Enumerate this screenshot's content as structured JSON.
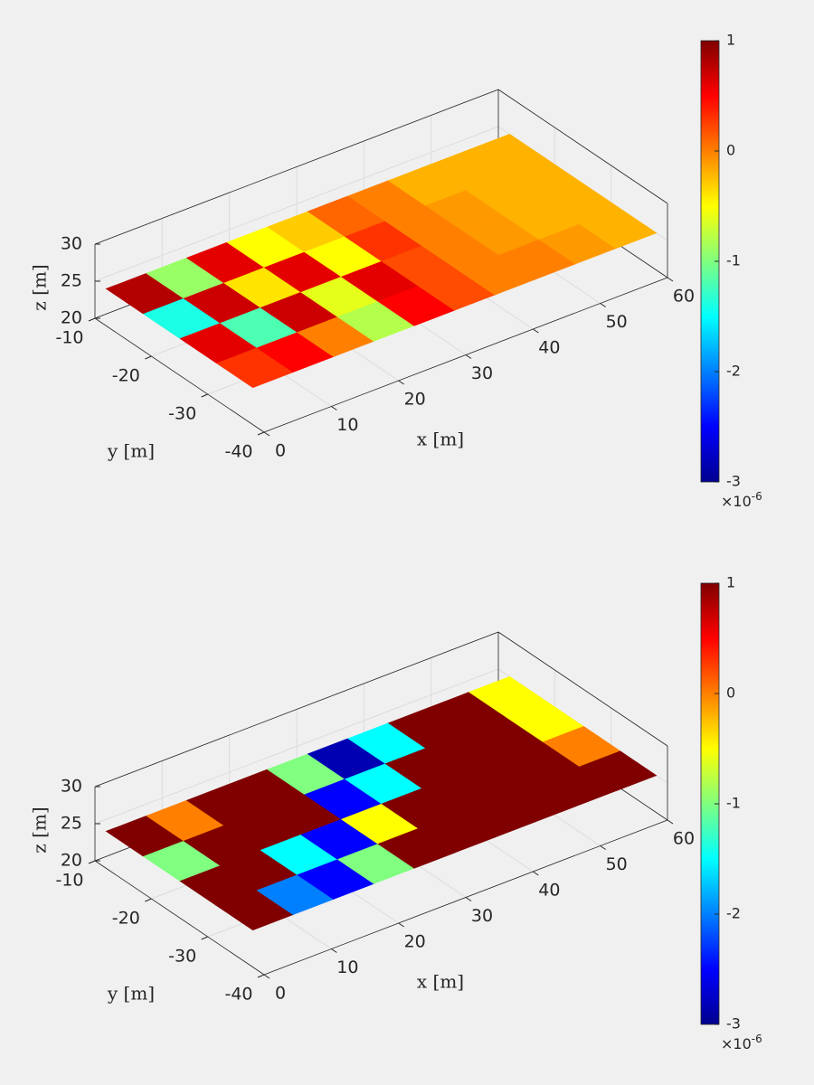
{
  "chart_data": [
    {
      "type": "surface",
      "xlabel": "x [m]",
      "ylabel": "y [m]",
      "zlabel": "z [m]",
      "x": [
        0,
        6,
        12,
        18,
        24,
        30,
        36,
        42,
        48,
        54,
        60
      ],
      "y": [
        -38,
        -31.5,
        -25,
        -18.5,
        -12
      ],
      "z": 25,
      "values": [
        [
          0.3,
          0.5,
          0.0,
          -0.8,
          0.5,
          0.2,
          0.0,
          0.0,
          -0.1,
          -0.2
        ],
        [
          0.6,
          -1.2,
          0.7,
          -0.6,
          0.6,
          0.2,
          0.0,
          -0.1,
          -0.2,
          -0.2
        ],
        [
          -1.4,
          0.7,
          -0.4,
          0.6,
          -0.5,
          0.3,
          0.0,
          -0.1,
          -0.2,
          -0.2
        ],
        [
          0.8,
          -0.9,
          0.6,
          -0.5,
          -0.3,
          0.1,
          0.0,
          -0.2,
          -0.2,
          -0.2
        ]
      ],
      "xlim": [
        0,
        60
      ],
      "xticks": [
        0,
        10,
        20,
        30,
        40,
        50,
        60
      ],
      "ylim": [
        -40,
        -10
      ],
      "yticks": [
        -10,
        -20,
        -30,
        -40
      ],
      "zlim": [
        20,
        30
      ],
      "zticks": [
        20,
        25,
        30
      ],
      "clim": [
        -3,
        1
      ],
      "cticks": [
        -3,
        -2,
        -1,
        0,
        1
      ],
      "colorbar_multiplier": "×10",
      "colorbar_exponent": "-6",
      "colormap": "jet",
      "grid": true
    },
    {
      "type": "surface",
      "xlabel": "x [m]",
      "ylabel": "y [m]",
      "zlabel": "z [m]",
      "x": [
        0,
        6,
        12,
        18,
        24,
        30,
        36,
        42,
        48,
        54,
        60
      ],
      "y": [
        -38,
        -31.5,
        -25,
        -18.5,
        -12
      ],
      "z": 25,
      "values": [
        [
          1.5,
          -2,
          -2.5,
          -1,
          1.5,
          1.5,
          1.5,
          1.5,
          1.5,
          1.5
        ],
        [
          1.5,
          1.5,
          -1.5,
          -2.5,
          -0.5,
          1.5,
          1.5,
          1.5,
          1.5,
          0
        ],
        [
          -1,
          1.5,
          1.5,
          1.5,
          -2.5,
          -1.5,
          1.5,
          1.5,
          1.5,
          -0.5
        ],
        [
          1.5,
          0,
          1.5,
          1.5,
          -1,
          -2.8,
          -1.5,
          1.5,
          1.5,
          -0.5
        ]
      ],
      "xlim": [
        0,
        60
      ],
      "xticks": [
        0,
        10,
        20,
        30,
        40,
        50,
        60
      ],
      "ylim": [
        -40,
        -10
      ],
      "yticks": [
        -10,
        -20,
        -30,
        -40
      ],
      "zlim": [
        20,
        30
      ],
      "zticks": [
        20,
        25,
        30
      ],
      "clim": [
        -3,
        1
      ],
      "cticks": [
        -3,
        -2,
        -1,
        0,
        1
      ],
      "colorbar_multiplier": "×10",
      "colorbar_exponent": "-6",
      "colormap": "jet",
      "grid": true
    }
  ]
}
